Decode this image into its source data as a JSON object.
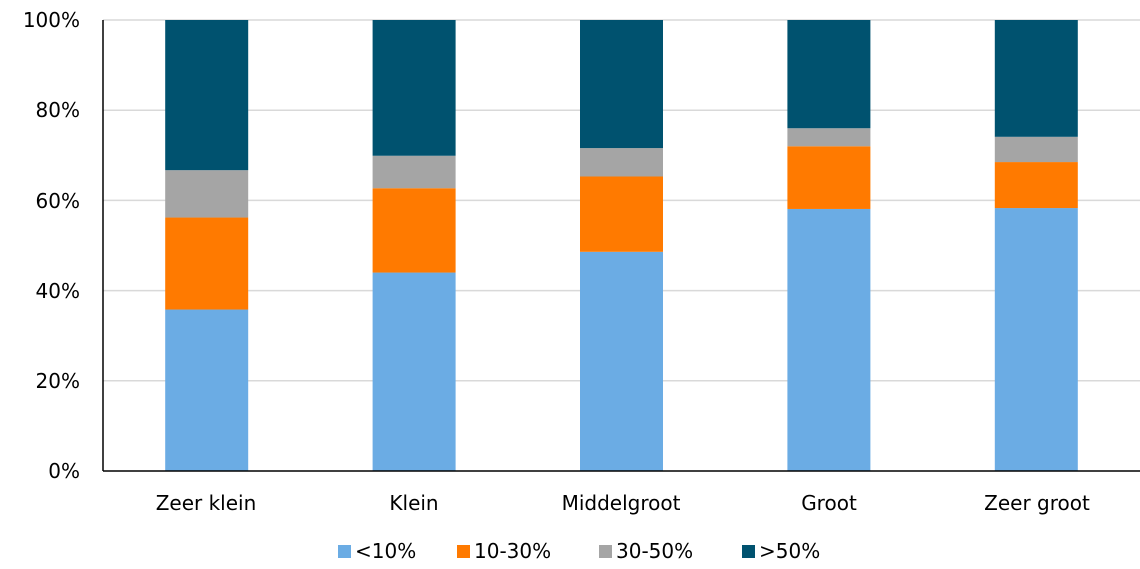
{
  "chart_data": {
    "type": "bar",
    "stacked": true,
    "categories": [
      "Zeer klein",
      "Klein",
      "Middelgroot",
      "Groot",
      "Zeer groot"
    ],
    "series": [
      {
        "name": "<10%",
        "color": "#6BACE4",
        "values": [
          35.8,
          44.0,
          48.6,
          58.1,
          58.3
        ]
      },
      {
        "name": "10-30%",
        "color": "#FF7A00",
        "values": [
          20.4,
          18.7,
          16.7,
          13.9,
          10.2
        ]
      },
      {
        "name": "30-50%",
        "color": "#A5A5A5",
        "values": [
          10.5,
          7.2,
          6.3,
          4.0,
          5.6
        ]
      },
      {
        "name": ">50%",
        "color": "#00526F",
        "values": [
          33.3,
          30.1,
          28.4,
          24.0,
          25.9
        ]
      }
    ],
    "y_ticks": [
      "0%",
      "20%",
      "40%",
      "60%",
      "80%",
      "100%"
    ],
    "ylim": [
      0,
      100
    ],
    "grid": true,
    "legend_position": "bottom"
  }
}
